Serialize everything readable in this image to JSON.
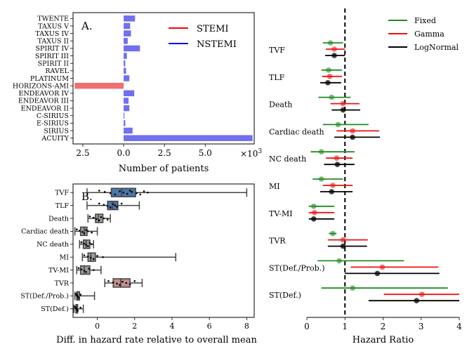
{
  "chart_data": [
    {
      "panel": "A.",
      "type": "bar",
      "orientation": "horizontal",
      "xlabel": "Number of patients",
      "x_multiplier": "×10",
      "x_multiplier_exp": "3",
      "xlim": [
        -3.1,
        8.0
      ],
      "xticks": [
        -2.5,
        0.0,
        2.5,
        5.0
      ],
      "xtick_labels": [
        "2.5",
        "0.0",
        "2.5",
        "5.0"
      ],
      "legend": [
        {
          "name": "STEMI",
          "color": "#ff0000"
        },
        {
          "name": "NSTEMI",
          "color": "#0000ff"
        }
      ],
      "bar_colors": {
        "STEMI": "#f07070",
        "NSTEMI": "#7070f0"
      },
      "categories": [
        "TWENTE",
        "TAXUS V",
        "TAXUS IV",
        "TAXUS II",
        "SPIRIT IV",
        "SPIRIT III",
        "SPIRIT II",
        "RAVEL",
        "PLATINUM",
        "HORIZONS-AMI",
        "ENDEAVOR IV",
        "ENDEAVOR III",
        "ENDEAVOR II",
        "C-SIRIUS",
        "E-SIRIUS",
        "SIRIUS",
        "ACUITY"
      ],
      "series": [
        {
          "name": "STEMI",
          "values": [
            0,
            0,
            0,
            0,
            0,
            0,
            0,
            0,
            0,
            -3.0,
            0,
            0,
            0,
            0,
            0,
            0,
            0
          ]
        },
        {
          "name": "NSTEMI",
          "values": [
            0.7,
            0.4,
            0.45,
            0.25,
            1.0,
            0.2,
            0.1,
            0.15,
            0.35,
            0,
            0.65,
            0.3,
            0.35,
            0.05,
            0.1,
            0.55,
            7.9
          ]
        }
      ]
    },
    {
      "panel": "B.",
      "type": "box",
      "xlabel": "Diff. in hazard rate relative to overall mean",
      "xlim": [
        -1.3,
        8.4
      ],
      "xticks": [
        0,
        2,
        4,
        6,
        8
      ],
      "xtick_labels": [
        "0",
        "2",
        "4",
        "6",
        "8"
      ],
      "categories": [
        "TVF",
        "TLF",
        "Death",
        "Cardiac death",
        "NC death",
        "MI",
        "TV-MI",
        "TVR",
        "ST(Def./Prob.)",
        "ST(Def.)"
      ],
      "box_colors": [
        "#4a76a8",
        "#4a76a8",
        "#9a9a9a",
        "#9a9a9a",
        "#9a9a9a",
        "#9a9a9a",
        "#9a9a9a",
        "#c48e8e",
        "#9a9a9a",
        "#9a9a9a"
      ],
      "boxes": [
        {
          "min": -0.55,
          "q1": 0.75,
          "median": 1.3,
          "q3": 2.05,
          "max": 8.0,
          "points": [
            0.1,
            0.4,
            0.7,
            0.95,
            1.2,
            1.4,
            1.6,
            1.75,
            1.85,
            2.1,
            2.3,
            2.5,
            2.7
          ]
        },
        {
          "min": -0.55,
          "q1": 0.55,
          "median": 0.8,
          "q3": 1.1,
          "max": 2.25,
          "points": [
            0.1,
            0.35,
            0.55,
            0.7,
            0.85,
            0.95,
            1.05,
            1.3
          ]
        },
        {
          "min": -0.5,
          "q1": -0.1,
          "median": 0.05,
          "q3": 0.3,
          "max": 0.7,
          "points": [
            -0.4,
            -0.2,
            -0.05,
            0.1,
            0.2,
            0.35,
            0.55
          ]
        },
        {
          "min": -1.2,
          "q1": -0.9,
          "median": -0.7,
          "q3": -0.55,
          "max": 0.0,
          "points": [
            -1.1,
            -0.95,
            -0.8,
            -0.7,
            -0.6,
            -0.5,
            -0.3
          ]
        },
        {
          "min": -0.95,
          "q1": -0.75,
          "median": -0.6,
          "q3": -0.4,
          "max": -0.2,
          "points": [
            -0.85,
            -0.7,
            -0.6,
            -0.5,
            -0.4,
            -0.3
          ]
        },
        {
          "min": -0.8,
          "q1": -0.5,
          "median": -0.35,
          "q3": -0.1,
          "max": 4.2,
          "points": [
            -0.7,
            -0.5,
            -0.35,
            -0.2,
            0.0,
            0.3
          ]
        },
        {
          "min": -1.1,
          "q1": -0.9,
          "median": -0.7,
          "q3": -0.4,
          "max": 0.2,
          "points": [
            -1.0,
            -0.85,
            -0.7,
            -0.6,
            -0.45,
            -0.2
          ]
        },
        {
          "min": 0.4,
          "q1": 0.85,
          "median": 1.25,
          "q3": 1.75,
          "max": 2.4,
          "points": [
            0.6,
            0.85,
            1.05,
            1.2,
            1.35,
            1.55,
            1.75,
            2.0
          ]
        },
        {
          "min": -1.2,
          "q1": -1.1,
          "median": -1.05,
          "q3": -0.95,
          "max": -0.15,
          "points": [
            -1.15,
            -1.1,
            -1.05,
            -1.0,
            -0.9
          ]
        },
        {
          "min": -1.25,
          "q1": -1.15,
          "median": -1.1,
          "q3": -1.05,
          "max": -0.75,
          "points": [
            -1.2,
            -1.15,
            -1.1,
            -1.05,
            -0.9
          ]
        }
      ]
    },
    {
      "type": "forest",
      "xlabel": "Hazard Ratio",
      "xlim": [
        0,
        4
      ],
      "xticks": [
        0,
        1,
        2,
        3,
        4
      ],
      "xtick_labels": [
        "0",
        "1",
        "2",
        "3",
        "4"
      ],
      "reference_line": 1,
      "legend": [
        {
          "name": "Fixed",
          "color": "#228b22"
        },
        {
          "name": "Gamma",
          "color": "#ee1111"
        },
        {
          "name": "LogNormal",
          "color": "#000000"
        }
      ],
      "categories": [
        "TVF",
        "TLF",
        "Death",
        "Cardiac death",
        "NC death",
        "MI",
        "TV-MI",
        "TVR",
        "ST(Def./Prob.)",
        "ST(Def.)"
      ],
      "series": [
        {
          "name": "Fixed",
          "point": [
            0.62,
            0.57,
            0.65,
            0.82,
            0.38,
            0.38,
            0.18,
            0.68,
            0.85,
            1.2
          ],
          "low": [
            0.42,
            0.38,
            0.3,
            0.42,
            0.1,
            0.15,
            0.05,
            0.58,
            0.28,
            0.38
          ],
          "high": [
            0.95,
            0.92,
            1.15,
            1.62,
            1.25,
            0.95,
            0.72,
            0.78,
            2.55,
            3.7
          ]
        },
        {
          "name": "Gamma",
          "point": [
            0.72,
            0.6,
            0.95,
            1.2,
            0.78,
            0.68,
            0.2,
            0.95,
            1.98,
            3.02
          ],
          "low": [
            0.5,
            0.4,
            0.62,
            0.78,
            0.5,
            0.42,
            0.05,
            0.55,
            1.15,
            2.02
          ],
          "high": [
            1.0,
            0.92,
            1.38,
            1.9,
            1.2,
            1.2,
            0.72,
            1.6,
            3.45,
            4.0
          ]
        },
        {
          "name": "LogNormal",
          "point": [
            0.72,
            0.55,
            0.95,
            1.2,
            0.8,
            0.65,
            0.18,
            0.95,
            1.85,
            2.88
          ],
          "low": [
            0.48,
            0.35,
            0.65,
            0.72,
            0.45,
            0.35,
            0.05,
            0.55,
            1.0,
            1.62
          ],
          "high": [
            1.0,
            0.9,
            1.4,
            1.92,
            1.25,
            1.2,
            0.72,
            1.58,
            3.48,
            4.0
          ]
        }
      ]
    }
  ]
}
